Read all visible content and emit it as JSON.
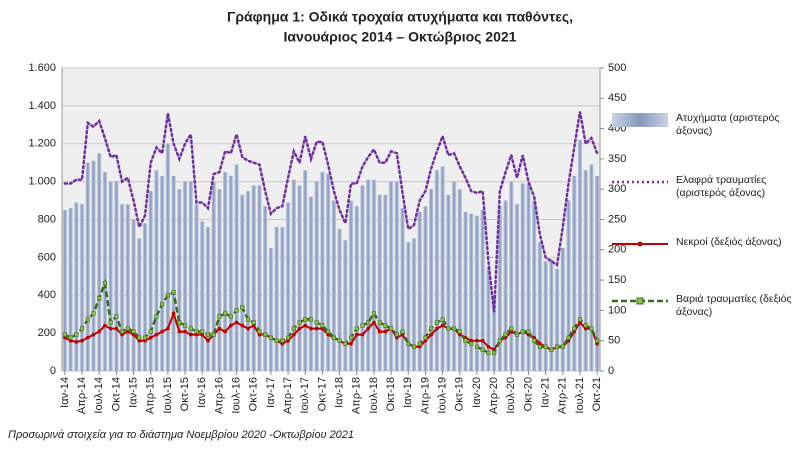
{
  "chart_data": {
    "type": "bar-line",
    "title": "Γράφημα 1: Οδικά τροχαία ατυχήματα και παθόντες,",
    "subtitle": "Ιανουάριος 2014 – Οκτώβριος 2021",
    "footnote": "Προσωρινά στοιχεία για το διάστημα Νοεμβρίου 2020 -Οκτωβρίου 2021",
    "categories": [
      "Ιαν-14",
      null,
      null,
      "Απρ-14",
      null,
      null,
      "Ιουλ-14",
      null,
      null,
      "Οκτ-14",
      null,
      null,
      "Ιαν-15",
      null,
      null,
      "Απρ-15",
      null,
      null,
      "Ιουλ-15",
      null,
      null,
      "Οκτ-15",
      null,
      null,
      "Ιαν-16",
      null,
      null,
      "Απρ-16",
      null,
      null,
      "Ιουλ-16",
      null,
      null,
      "Οκτ-16",
      null,
      null,
      "Ιαν-17",
      null,
      null,
      "Απρ-17",
      null,
      null,
      "Ιουλ-17",
      null,
      null,
      "Οκτ-17",
      null,
      null,
      "Ιαν-18",
      null,
      null,
      "Απρ-18",
      null,
      null,
      "Ιουλ-18",
      null,
      null,
      "Οκτ-18",
      null,
      null,
      "Ιαν-19",
      null,
      null,
      "Απρ-19",
      null,
      null,
      "Ιουλ-19",
      null,
      null,
      "Οκτ-19",
      null,
      null,
      "Ιαν-20",
      null,
      null,
      "Απρ-20",
      null,
      null,
      "Ιουλ-20",
      null,
      null,
      "Οκτ-20",
      null,
      null,
      "Ιαν-21",
      null,
      null,
      "Απρ-21",
      null,
      null,
      "Ιουλ-21",
      null,
      null,
      "Οκτ-21"
    ],
    "ylim": [
      0,
      1600
    ],
    "yticks": [
      {
        "value": 0,
        "label": "0"
      },
      {
        "value": 200,
        "label": "200"
      },
      {
        "value": 400,
        "label": "400"
      },
      {
        "value": 600,
        "label": "600"
      },
      {
        "value": 800,
        "label": "800"
      },
      {
        "value": 1000,
        "label": "1.000"
      },
      {
        "value": 1200,
        "label": "1.200"
      },
      {
        "value": 1400,
        "label": "1.400"
      },
      {
        "value": 1600,
        "label": "1.600"
      }
    ],
    "y2lim": [
      0,
      500
    ],
    "y2ticks": [
      0,
      50,
      100,
      150,
      200,
      250,
      300,
      350,
      400,
      450,
      500
    ],
    "grid": true,
    "series": [
      {
        "name": "Ατυχήματα (αριστερός άξονας)",
        "kind": "bar",
        "axis": "y",
        "color": "#9fb0d0",
        "values": [
          850,
          860,
          890,
          880,
          1100,
          1110,
          1150,
          1050,
          1000,
          1000,
          880,
          880,
          800,
          700,
          780,
          950,
          1060,
          1030,
          1200,
          1030,
          960,
          1000,
          1000,
          880,
          790,
          760,
          1000,
          960,
          1050,
          1030,
          1090,
          930,
          950,
          980,
          980,
          870,
          650,
          760,
          760,
          890,
          1010,
          980,
          1060,
          920,
          1000,
          1050,
          1040,
          900,
          750,
          690,
          900,
          870,
          980,
          1010,
          1010,
          930,
          930,
          1000,
          1000,
          860,
          680,
          700,
          840,
          870,
          960,
          1060,
          1080,
          930,
          1000,
          960,
          840,
          830,
          820,
          850,
          550,
          400,
          870,
          900,
          1000,
          880,
          990,
          990,
          900,
          680,
          580,
          590,
          540,
          650,
          900,
          1030,
          1220,
          1060,
          1090,
          1030
        ]
      },
      {
        "name": "Ελαφρά τραυματίες (αριστερός άξονας)",
        "kind": "line",
        "style": "dotted",
        "axis": "y",
        "color": "#7030a0",
        "values": [
          990,
          990,
          1010,
          1010,
          1310,
          1290,
          1320,
          1230,
          1130,
          1140,
          1000,
          1020,
          900,
          760,
          820,
          1100,
          1180,
          1150,
          1360,
          1200,
          1120,
          1200,
          1250,
          890,
          890,
          860,
          1040,
          1050,
          1160,
          1150,
          1250,
          1130,
          1110,
          1100,
          1090,
          950,
          830,
          860,
          870,
          1020,
          1160,
          1100,
          1240,
          1120,
          1210,
          1210,
          1090,
          950,
          850,
          780,
          990,
          990,
          1080,
          1130,
          1170,
          1100,
          1100,
          1160,
          1150,
          940,
          750,
          770,
          900,
          950,
          1070,
          1160,
          1240,
          1140,
          1150,
          1080,
          1020,
          950,
          940,
          950,
          580,
          310,
          950,
          1050,
          1140,
          1020,
          1140,
          1000,
          920,
          720,
          600,
          580,
          560,
          760,
          990,
          1180,
          1370,
          1200,
          1230,
          1150
        ]
      },
      {
        "name": "Νεκροί (δεξιός άξονας)",
        "kind": "line",
        "style": "solid",
        "marker": "circle",
        "axis": "y2",
        "color": "#c00000",
        "values": [
          55,
          50,
          48,
          50,
          55,
          60,
          65,
          75,
          70,
          70,
          60,
          65,
          60,
          50,
          50,
          55,
          60,
          65,
          70,
          95,
          65,
          65,
          60,
          60,
          60,
          50,
          60,
          70,
          65,
          75,
          80,
          75,
          70,
          75,
          60,
          60,
          55,
          50,
          45,
          50,
          60,
          70,
          75,
          70,
          70,
          70,
          60,
          55,
          50,
          45,
          45,
          60,
          60,
          70,
          80,
          65,
          65,
          70,
          55,
          60,
          45,
          40,
          40,
          50,
          60,
          70,
          75,
          70,
          70,
          60,
          55,
          50,
          50,
          50,
          40,
          35,
          50,
          55,
          65,
          60,
          65,
          60,
          55,
          45,
          40,
          35,
          40,
          40,
          50,
          65,
          80,
          70,
          70,
          45
        ]
      },
      {
        "name": "Βαριά τραυματίες (δεξιός άξονας)",
        "kind": "line",
        "style": "dashed",
        "marker": "square",
        "axis": "y2",
        "color": "#3a6b1c",
        "values": [
          60,
          55,
          60,
          70,
          85,
          95,
          120,
          145,
          80,
          90,
          65,
          70,
          65,
          55,
          55,
          65,
          90,
          110,
          125,
          130,
          80,
          75,
          70,
          65,
          65,
          60,
          60,
          90,
          95,
          90,
          100,
          105,
          85,
          80,
          65,
          60,
          55,
          50,
          50,
          55,
          70,
          80,
          85,
          85,
          80,
          75,
          65,
          55,
          50,
          45,
          55,
          70,
          75,
          80,
          95,
          80,
          75,
          70,
          60,
          65,
          45,
          40,
          45,
          55,
          70,
          80,
          85,
          70,
          70,
          65,
          50,
          45,
          40,
          35,
          30,
          30,
          50,
          60,
          70,
          60,
          65,
          65,
          50,
          40,
          40,
          35,
          40,
          40,
          55,
          70,
          85,
          75,
          70,
          50
        ]
      }
    ]
  }
}
